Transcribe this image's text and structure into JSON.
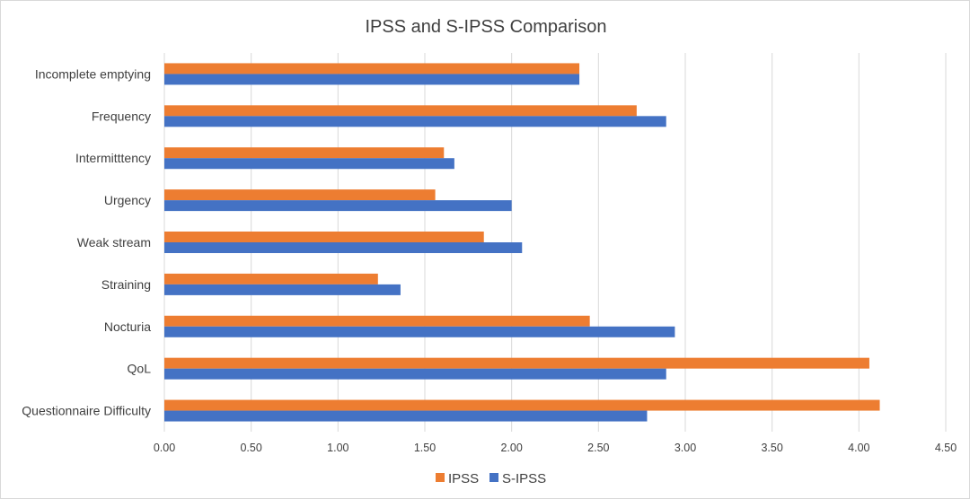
{
  "chart_data": {
    "type": "bar",
    "orientation": "horizontal",
    "title": "IPSS and S-IPSS Comparison",
    "xlabel": "",
    "ylabel": "",
    "categories": [
      "Incomplete emptying",
      "Frequency",
      "Intermitttency",
      "Urgency",
      "Weak stream",
      "Straining",
      "Nocturia",
      "QoL",
      "Questionnaire Difficulty"
    ],
    "series": [
      {
        "name": "IPSS",
        "color": "#ED7D31",
        "values": [
          2.39,
          2.72,
          1.61,
          1.56,
          1.84,
          1.23,
          2.45,
          4.06,
          4.12
        ]
      },
      {
        "name": "S-IPSS",
        "color": "#4472C4",
        "values": [
          2.39,
          2.89,
          1.67,
          2.0,
          2.06,
          1.36,
          2.94,
          2.89,
          2.78
        ]
      }
    ],
    "xlim": [
      0,
      4.5
    ],
    "x_ticks": [
      "0.00",
      "0.50",
      "1.00",
      "1.50",
      "2.00",
      "2.50",
      "3.00",
      "3.50",
      "4.00",
      "4.50"
    ],
    "grid": true,
    "legend_position": "bottom"
  }
}
